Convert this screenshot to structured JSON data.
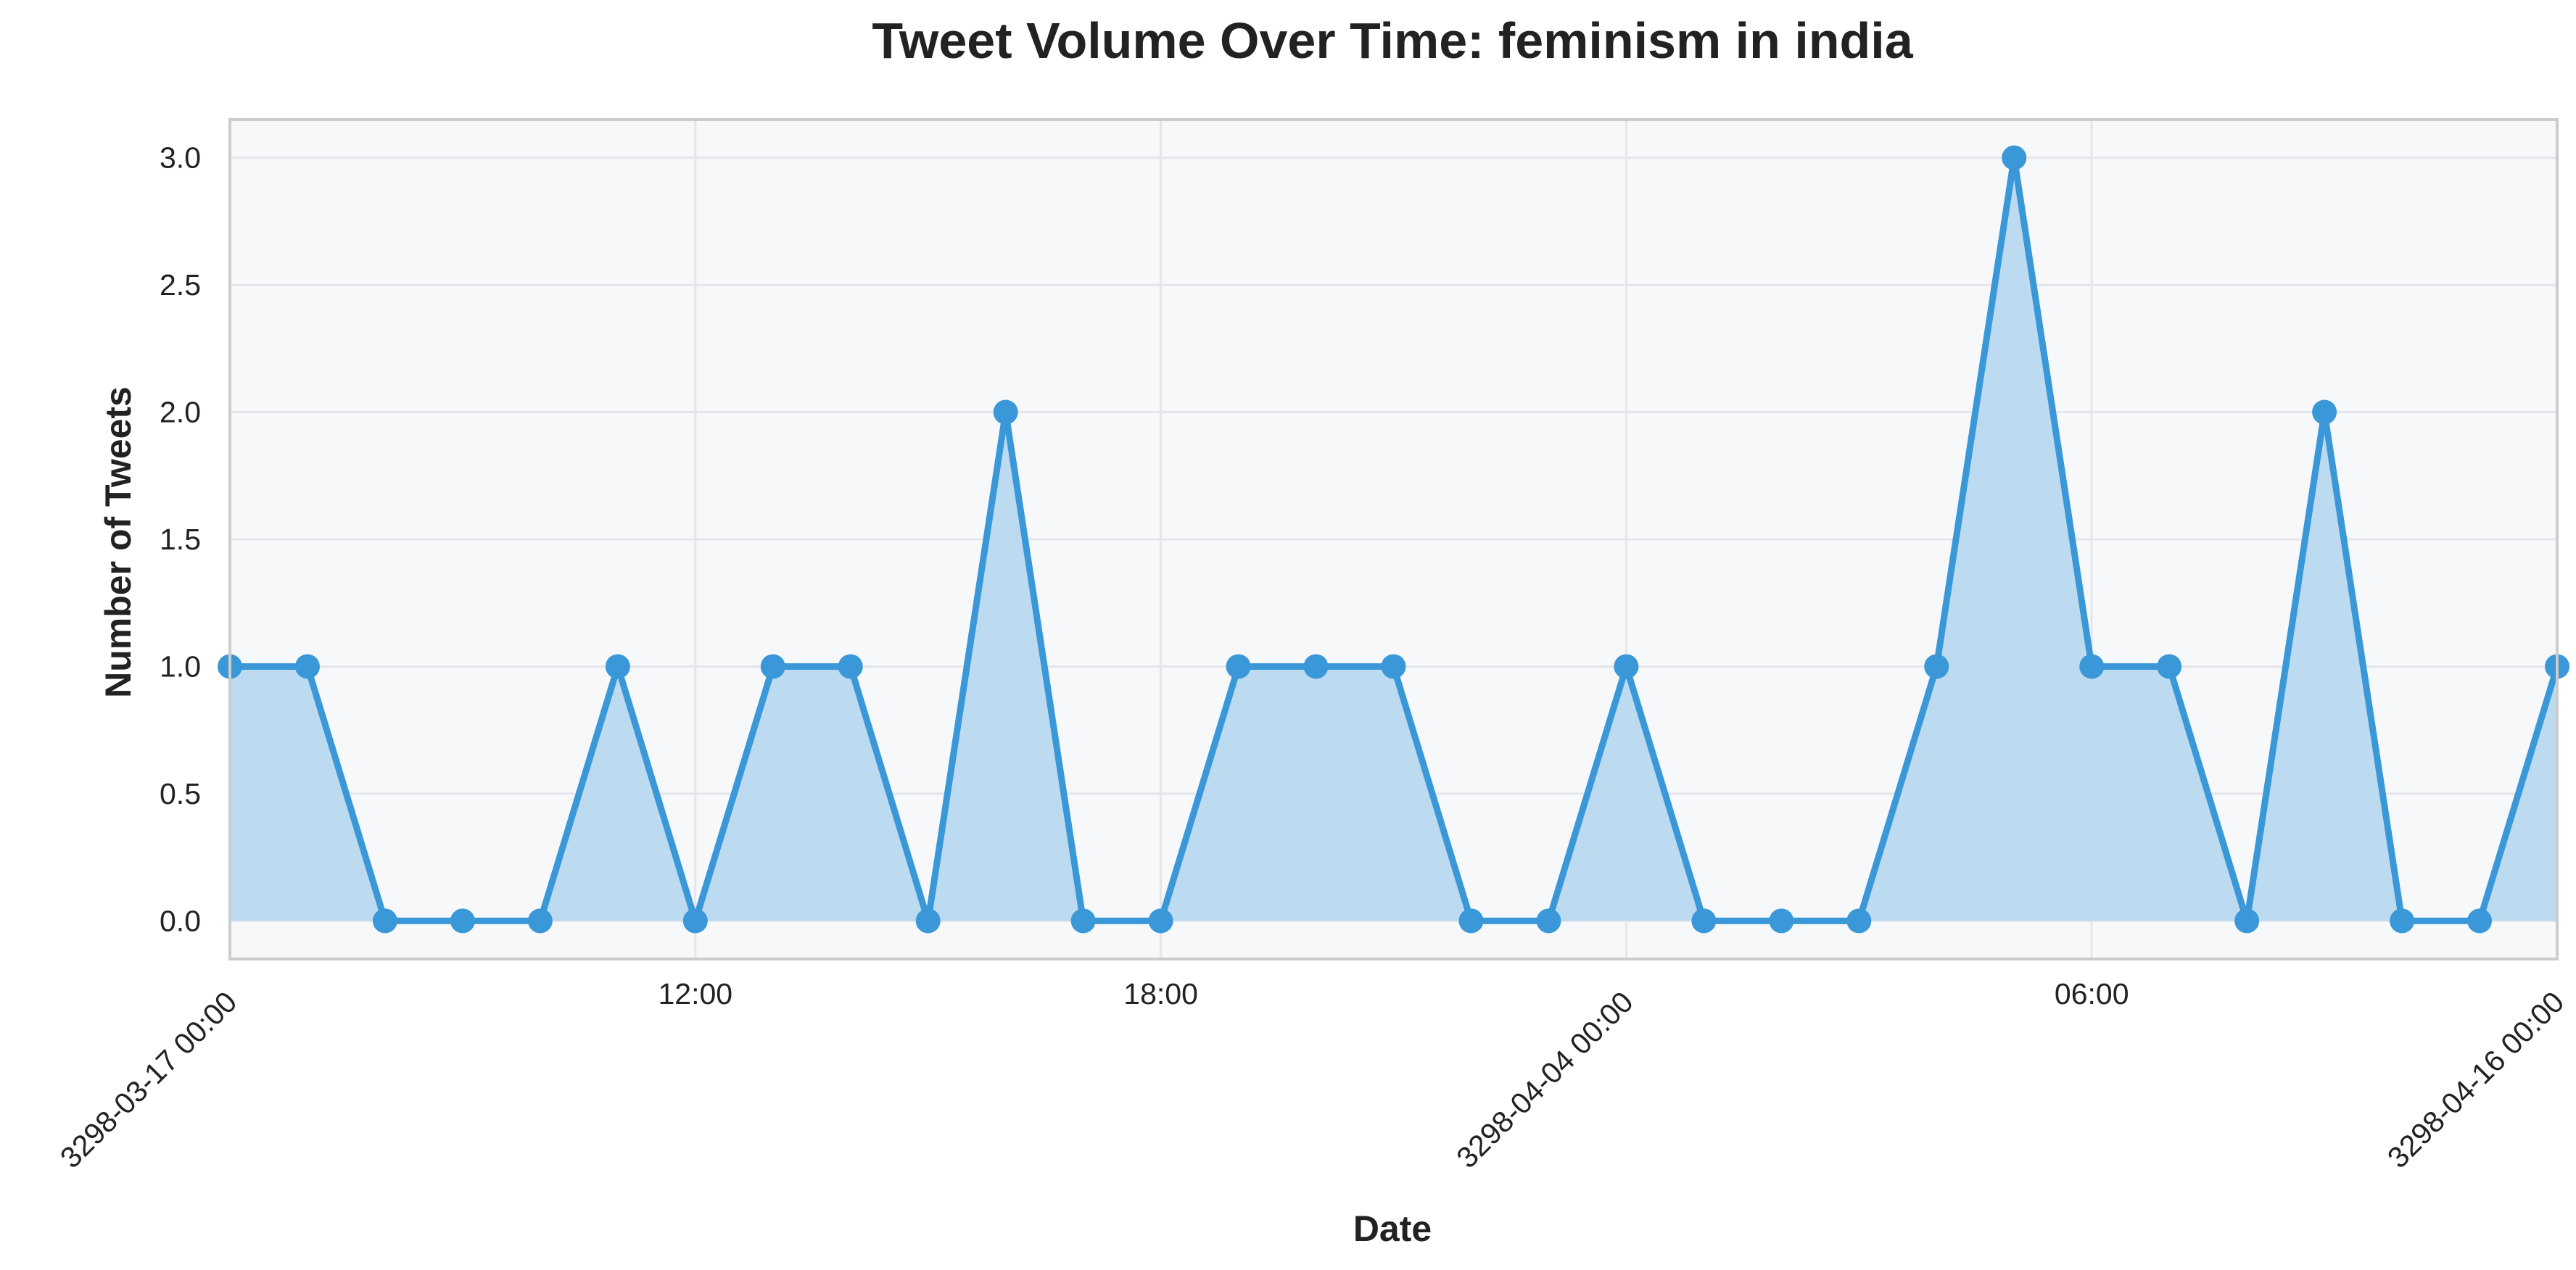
{
  "chart_data": {
    "type": "area",
    "title": "Tweet Volume Over Time: feminism in india",
    "xlabel": "Date",
    "ylabel": "Number of Tweets",
    "ylim": [
      -0.15,
      3.15
    ],
    "y_ticks": [
      0.0,
      0.5,
      1.0,
      1.5,
      2.0,
      2.5,
      3.0
    ],
    "y_tick_labels": [
      "0.0",
      "0.5",
      "1.0",
      "1.5",
      "2.0",
      "2.5",
      "3.0"
    ],
    "x_ticks": [
      {
        "index": 0,
        "label": "3298-03-17 00:00",
        "rotated": true
      },
      {
        "index": 6,
        "label": "12:00",
        "rotated": false
      },
      {
        "index": 12,
        "label": "18:00",
        "rotated": false
      },
      {
        "index": 18,
        "label": "3298-04-04 00:00",
        "rotated": true
      },
      {
        "index": 24,
        "label": "06:00",
        "rotated": false
      },
      {
        "index": 30,
        "label": "3298-04-16 00:00",
        "rotated": true
      }
    ],
    "grid": true,
    "series": [
      {
        "values": [
          1,
          1,
          0,
          0,
          0,
          1,
          0,
          1,
          1,
          0,
          2,
          0,
          0,
          1,
          1,
          1,
          0,
          0,
          1,
          0,
          0,
          0,
          1,
          3,
          1,
          1,
          0,
          2,
          0,
          0,
          1
        ]
      }
    ],
    "colors": {
      "line": "#3a98d8",
      "fill": "#bcdaf0",
      "plot_background": "#f7f8fa",
      "grid": "#e4e6eb",
      "axes_border": "#cccccc",
      "text": "#222222"
    }
  }
}
